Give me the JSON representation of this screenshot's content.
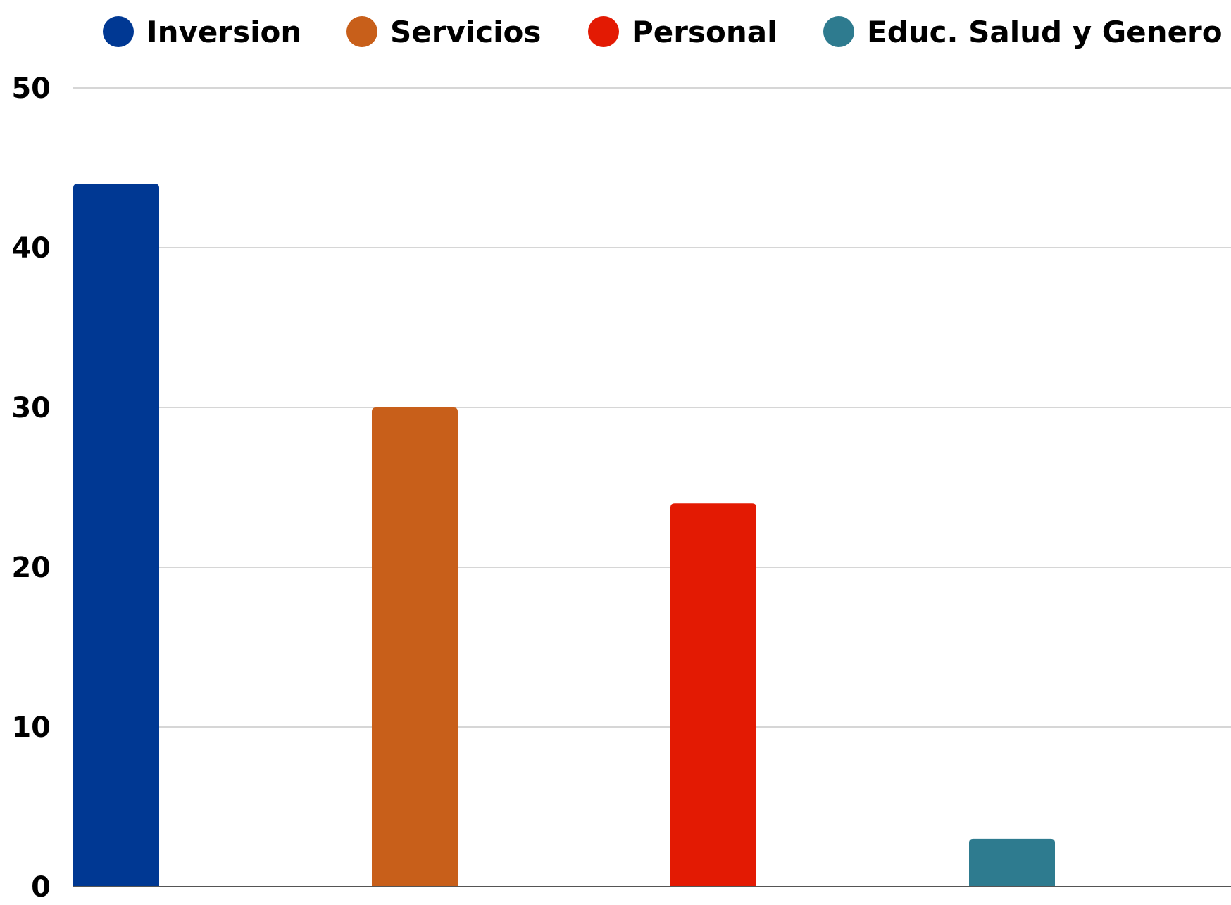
{
  "chart_data": {
    "type": "bar",
    "title": "",
    "xlabel": "",
    "ylabel": "",
    "ylim": [
      0,
      50
    ],
    "yticks": [
      0,
      10,
      20,
      30,
      40,
      50
    ],
    "grid": true,
    "legend_position": "top",
    "series": [
      {
        "name": "Inversion",
        "value": 44,
        "color": "#003893"
      },
      {
        "name": "Servicios",
        "value": 30,
        "color": "#C85F1A"
      },
      {
        "name": "Personal",
        "value": 24,
        "color": "#E31A03"
      },
      {
        "name": "Educ. Salud y Genero",
        "value": 3,
        "color": "#2E7B8F"
      }
    ]
  }
}
